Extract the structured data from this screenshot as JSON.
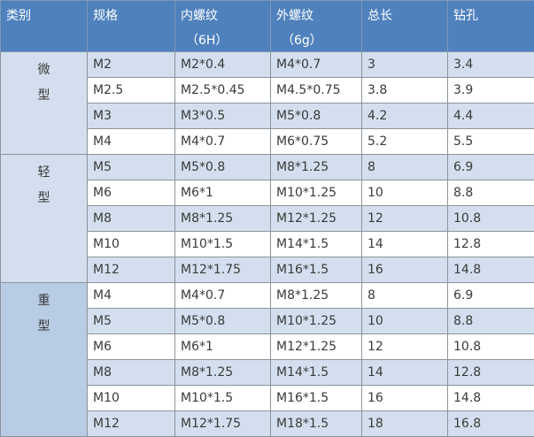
{
  "header": {
    "category": "类别",
    "spec": "规格",
    "internal": "内螺纹",
    "internal_sub": "（6H）",
    "external": "外螺纹",
    "external_sub": "（6g）",
    "length": "总长",
    "drill": "钻孔"
  },
  "colors": {
    "header": "#4f81bd",
    "row_alt": "#d3dfee",
    "heavy_category": "#b8cce4"
  },
  "groups": [
    {
      "c1": "微",
      "c2": "型",
      "rows": [
        [
          "M2",
          "M2*0.4",
          "M4*0.7",
          "3",
          "3.4"
        ],
        [
          "M2.5",
          "M2.5*0.45",
          "M4.5*0.75",
          "3.8",
          "3.9"
        ],
        [
          "M3",
          "M3*0.5",
          "M5*0.8",
          "4.2",
          "4.4"
        ],
        [
          "M4",
          "M4*0.7",
          "M6*0.75",
          "5.2",
          "5.5"
        ]
      ]
    },
    {
      "c1": "轻",
      "c2": "型",
      "rows": [
        [
          "M5",
          "M5*0.8",
          "M8*1.25",
          "8",
          "6.9"
        ],
        [
          "M6",
          "M6*1",
          "M10*1.25",
          "10",
          "8.8"
        ],
        [
          "M8",
          "M8*1.25",
          "M12*1.25",
          "12",
          "10.8"
        ],
        [
          "M10",
          "M10*1.5",
          "M14*1.5",
          "14",
          "12.8"
        ],
        [
          "M12",
          "M12*1.75",
          "M16*1.5",
          "16",
          "14.8"
        ]
      ]
    },
    {
      "c1": "重",
      "c2": "型",
      "rows": [
        [
          "M4",
          "M4*0.7",
          "M8*1.25",
          "8",
          "6.9"
        ],
        [
          "M5",
          "M5*0.8",
          "M10*1.25",
          "10",
          "8.8"
        ],
        [
          "M6",
          "M6*1",
          "M12*1.25",
          "12",
          "10.8"
        ],
        [
          "M8",
          "M8*1.25",
          "M14*1.5",
          "14",
          "12.8"
        ],
        [
          "M10",
          "M10*1.5",
          "M16*1.5",
          "16",
          "14.8"
        ],
        [
          "M12",
          "M12*1.75",
          "M18*1.5",
          "18",
          "16.8"
        ]
      ]
    }
  ]
}
